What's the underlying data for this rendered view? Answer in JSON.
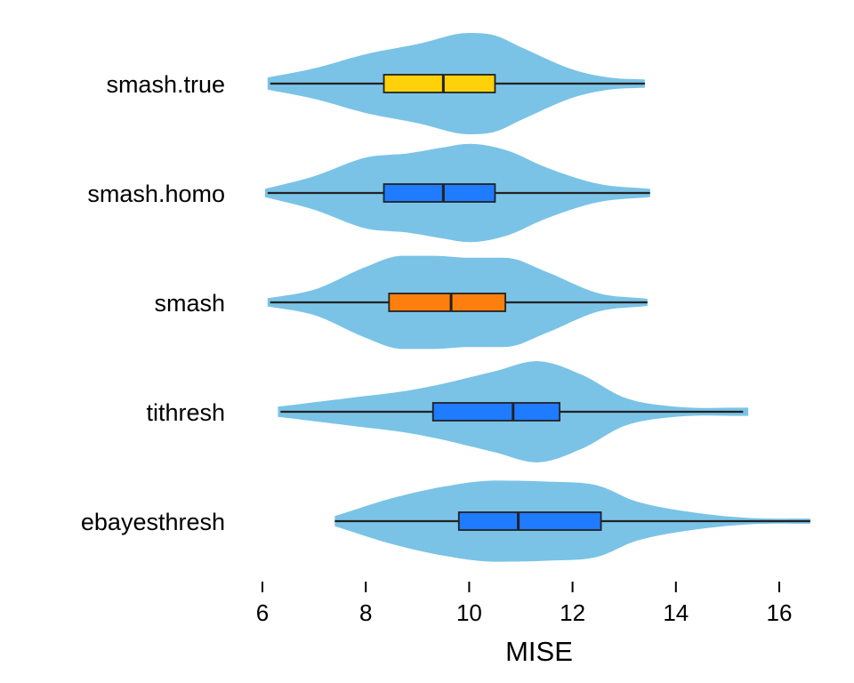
{
  "chart_data": {
    "type": "violin",
    "title": "",
    "xlabel": "MISE",
    "ylabel": "",
    "xlim": [
      5.9,
      16.7
    ],
    "x_ticks": [
      6,
      8,
      10,
      12,
      14,
      16
    ],
    "x_tick_labels": [
      "6",
      "8",
      "10",
      "12",
      "14",
      "16"
    ],
    "legend": "none",
    "grid": false,
    "violin_color": "#7ac3e6",
    "categories": [
      "smash.true",
      "smash.homo",
      "smash",
      "tithresh",
      "ebayesthresh"
    ],
    "series": [
      {
        "category": "smash.true",
        "box_color": "#ffd10a",
        "whisker_low": 6.15,
        "q1": 8.35,
        "median": 9.5,
        "q3": 10.5,
        "whisker_high": 13.4,
        "density": [
          [
            6.1,
            0.12
          ],
          [
            7.0,
            0.3
          ],
          [
            8.0,
            0.58
          ],
          [
            9.0,
            0.78
          ],
          [
            10.0,
            1.0
          ],
          [
            10.5,
            0.95
          ],
          [
            11.0,
            0.72
          ],
          [
            12.0,
            0.28
          ],
          [
            12.7,
            0.12
          ],
          [
            13.4,
            0.08
          ]
        ]
      },
      {
        "category": "smash.homo",
        "box_color": "#1f7bff",
        "whisker_low": 6.1,
        "q1": 8.35,
        "median": 9.5,
        "q3": 10.5,
        "whisker_high": 13.5,
        "density": [
          [
            6.05,
            0.08
          ],
          [
            7.0,
            0.33
          ],
          [
            8.0,
            0.7
          ],
          [
            8.8,
            0.78
          ],
          [
            9.5,
            0.9
          ],
          [
            10.0,
            0.97
          ],
          [
            10.7,
            0.85
          ],
          [
            11.5,
            0.5
          ],
          [
            12.5,
            0.18
          ],
          [
            13.5,
            0.08
          ]
        ]
      },
      {
        "category": "smash",
        "box_color": "#ff7f0e",
        "whisker_low": 6.15,
        "q1": 8.45,
        "median": 9.65,
        "q3": 10.7,
        "whisker_high": 13.45,
        "density": [
          [
            6.1,
            0.08
          ],
          [
            7.0,
            0.25
          ],
          [
            8.0,
            0.7
          ],
          [
            8.7,
            0.92
          ],
          [
            9.3,
            0.92
          ],
          [
            10.0,
            0.88
          ],
          [
            10.7,
            0.88
          ],
          [
            11.5,
            0.6
          ],
          [
            12.5,
            0.18
          ],
          [
            13.45,
            0.07
          ]
        ]
      },
      {
        "category": "tithresh",
        "box_color": "#1f7bff",
        "whisker_low": 6.35,
        "q1": 9.3,
        "median": 10.85,
        "q3": 11.75,
        "whisker_high": 15.3,
        "density": [
          [
            6.3,
            0.1
          ],
          [
            7.5,
            0.25
          ],
          [
            9.0,
            0.45
          ],
          [
            10.5,
            0.8
          ],
          [
            11.3,
            1.0
          ],
          [
            12.2,
            0.72
          ],
          [
            13.0,
            0.28
          ],
          [
            14.0,
            0.1
          ],
          [
            15.4,
            0.08
          ]
        ]
      },
      {
        "category": "ebayesthresh",
        "box_color": "#1f7bff",
        "whisker_low": 7.4,
        "q1": 9.8,
        "median": 10.95,
        "q3": 12.55,
        "whisker_high": 16.6,
        "density": [
          [
            7.4,
            0.1
          ],
          [
            8.5,
            0.45
          ],
          [
            9.5,
            0.68
          ],
          [
            10.5,
            0.8
          ],
          [
            11.5,
            0.78
          ],
          [
            12.5,
            0.7
          ],
          [
            13.2,
            0.4
          ],
          [
            14.5,
            0.15
          ],
          [
            15.5,
            0.06
          ],
          [
            16.6,
            0.05
          ]
        ]
      }
    ]
  }
}
